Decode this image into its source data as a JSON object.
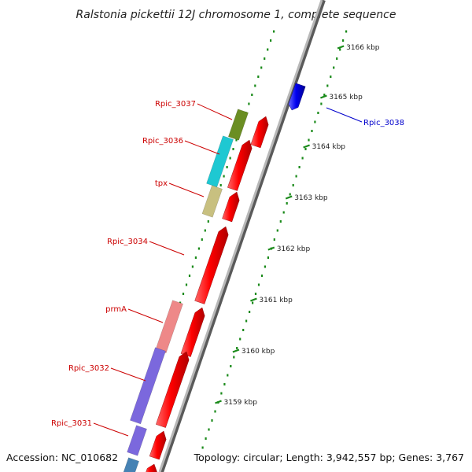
{
  "title": "Ralstonia pickettii 12J chromosome 1, complete sequence",
  "accession": "Accession: NC_010682",
  "summary": "Topology: circular; Length: 3,942,557 bp; Genes: 3,767",
  "colors": {
    "forward_gene": "#ff0000",
    "reverse_gene": "#0000dd",
    "tick": "#1a8a1a",
    "leader": "#cc0000",
    "backbone": "#8a8a8a"
  },
  "kbp_markers": [
    {
      "label": "3159 kbp"
    },
    {
      "label": "3160 kbp"
    },
    {
      "label": "3161 kbp"
    },
    {
      "label": "3162 kbp"
    },
    {
      "label": "3163 kbp"
    },
    {
      "label": "3164 kbp"
    },
    {
      "label": "3165 kbp"
    },
    {
      "label": "3166 kbp"
    }
  ],
  "gene_labels": [
    {
      "name": "Rpic_3037",
      "strand": "reverse",
      "color": "#cc0000"
    },
    {
      "name": "Rpic_3036",
      "strand": "reverse",
      "color": "#cc0000"
    },
    {
      "name": "tpx",
      "strand": "reverse",
      "color": "#cc0000"
    },
    {
      "name": "Rpic_3034",
      "strand": "reverse",
      "color": "#cc0000"
    },
    {
      "name": "prmA",
      "strand": "reverse",
      "color": "#cc0000"
    },
    {
      "name": "Rpic_3032",
      "strand": "reverse",
      "color": "#cc0000"
    },
    {
      "name": "Rpic_3031",
      "strand": "reverse",
      "color": "#cc0000"
    },
    {
      "name": "Rpic_3038",
      "strand": "forward",
      "color": "#0000cc"
    }
  ],
  "cog_blocks": [
    {
      "gene": "Rpic_3037",
      "color": "#6b8e23"
    },
    {
      "gene": "Rpic_3036",
      "color": "#1ec8d2"
    },
    {
      "gene": "tpx",
      "color": "#c8c080"
    },
    {
      "gene": "prmA",
      "color": "#ee8888"
    },
    {
      "gene": "Rpic_3032",
      "color": "#7b68dd"
    },
    {
      "gene": "Rpic_3031",
      "color": "#7b68dd"
    },
    {
      "gene": "",
      "color": "#4682b4"
    }
  ]
}
